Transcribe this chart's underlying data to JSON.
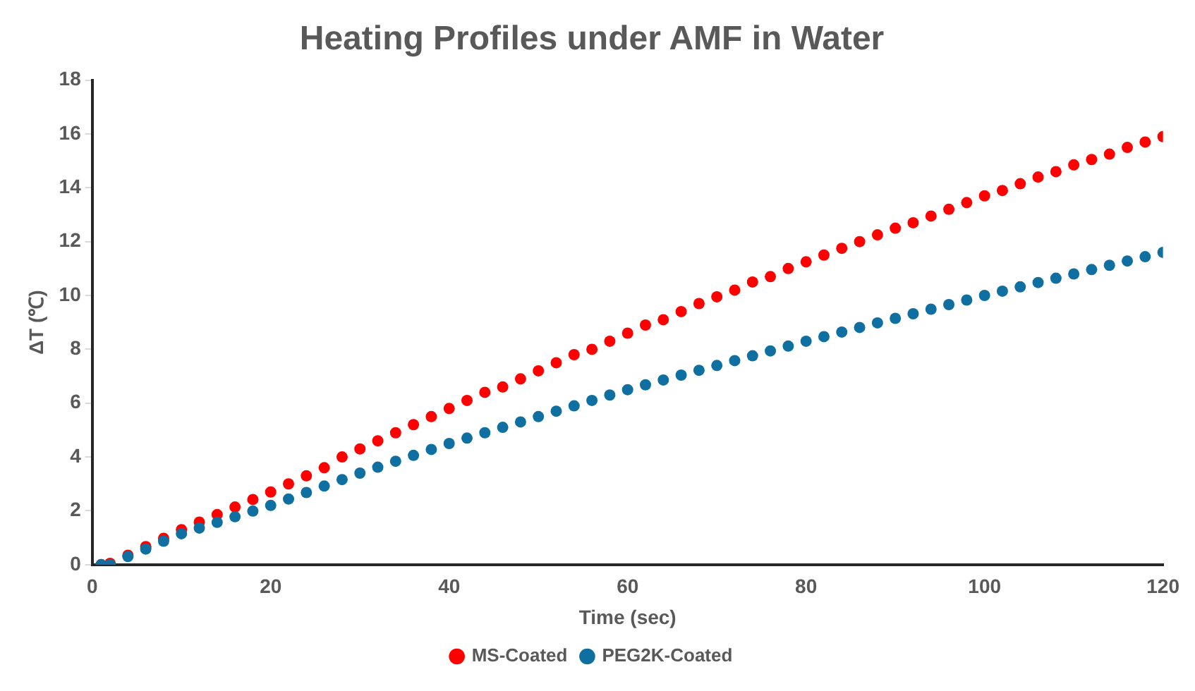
{
  "chart_data": {
    "type": "scatter",
    "title": "Heating Profiles under AMF in Water",
    "xlabel": "Time (sec)",
    "ylabel": "ΔT (℃)",
    "x": [
      1,
      2,
      4,
      6,
      8,
      10,
      12,
      14,
      16,
      18,
      20,
      22,
      24,
      26,
      28,
      30,
      32,
      34,
      36,
      38,
      40,
      42,
      44,
      46,
      48,
      50,
      52,
      54,
      56,
      58,
      60,
      62,
      64,
      66,
      68,
      70,
      72,
      74,
      76,
      78,
      80,
      82,
      84,
      86,
      88,
      90,
      92,
      94,
      96,
      98,
      100,
      102,
      104,
      106,
      108,
      110,
      112,
      114,
      116,
      118,
      120
    ],
    "series": [
      {
        "name": "MS-Coated",
        "color": "#ff0000",
        "values": [
          0,
          0.05,
          0.35,
          0.67,
          0.98,
          1.3,
          1.58,
          1.86,
          2.14,
          2.42,
          2.7,
          3.0,
          3.3,
          3.6,
          4.0,
          4.3,
          4.6,
          4.9,
          5.2,
          5.5,
          5.8,
          6.1,
          6.4,
          6.6,
          6.9,
          7.2,
          7.5,
          7.8,
          8.0,
          8.3,
          8.6,
          8.9,
          9.1,
          9.4,
          9.7,
          9.95,
          10.2,
          10.5,
          10.7,
          11.0,
          11.25,
          11.5,
          11.75,
          12.0,
          12.25,
          12.5,
          12.7,
          12.95,
          13.2,
          13.45,
          13.7,
          13.9,
          14.15,
          14.4,
          14.6,
          14.85,
          15.05,
          15.25,
          15.5,
          15.7,
          15.9
        ]
      },
      {
        "name": "PEG2K-Coated",
        "color": "#0e6fa0",
        "values": [
          0,
          0,
          0.3,
          0.58,
          0.87,
          1.15,
          1.36,
          1.57,
          1.78,
          1.99,
          2.2,
          2.44,
          2.68,
          2.92,
          3.16,
          3.4,
          3.62,
          3.84,
          4.06,
          4.28,
          4.5,
          4.7,
          4.9,
          5.1,
          5.3,
          5.5,
          5.7,
          5.9,
          6.1,
          6.3,
          6.5,
          6.68,
          6.86,
          7.04,
          7.22,
          7.4,
          7.58,
          7.76,
          7.94,
          8.12,
          8.3,
          8.47,
          8.64,
          8.81,
          8.98,
          9.15,
          9.32,
          9.49,
          9.66,
          9.83,
          10.0,
          10.16,
          10.32,
          10.48,
          10.64,
          10.8,
          10.96,
          11.12,
          11.28,
          11.44,
          11.6
        ]
      }
    ],
    "xlim": [
      0,
      120
    ],
    "xticks": [
      0,
      20,
      40,
      60,
      80,
      100,
      120
    ],
    "ylim": [
      0,
      18
    ],
    "yticks": [
      0,
      2,
      4,
      6,
      8,
      10,
      12,
      14,
      16,
      18
    ],
    "grid": false,
    "legend": "bottom",
    "marker": "circle"
  }
}
